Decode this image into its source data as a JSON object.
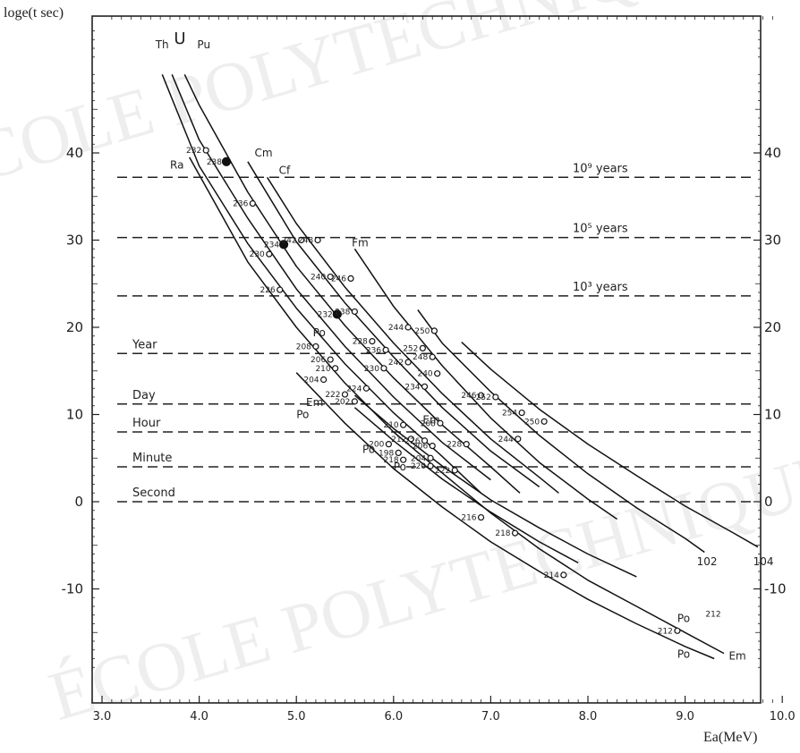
{
  "chart_data": {
    "type": "line",
    "ylabel": "loge(t sec)",
    "xlabel": "Ea(MeV)",
    "xlim": [
      3.0,
      10.0
    ],
    "ylim": [
      -20,
      55
    ],
    "xticks": [
      "3.0",
      "4.0",
      "5.0",
      "6.0",
      "7.0",
      "8.0",
      "9.0",
      "10.0"
    ],
    "yticks": [
      "40",
      "30",
      "20",
      "10",
      "0",
      "-10"
    ],
    "reference_lines": [
      {
        "label": "10⁹ years",
        "y": 37.2
      },
      {
        "label": "10⁵ years",
        "y": 30.3
      },
      {
        "label": "10³ years",
        "y": 23.6
      },
      {
        "label": "Year",
        "y": 17.0
      },
      {
        "label": "Day",
        "y": 11.2
      },
      {
        "label": "Hour",
        "y": 8.0
      },
      {
        "label": "Minute",
        "y": 4.0
      },
      {
        "label": "Second",
        "y": 0
      }
    ],
    "series": [
      {
        "name": "Th",
        "x": [
          3.62,
          4.0,
          4.5,
          5.0,
          5.5,
          6.0,
          6.5,
          6.9
        ],
        "y": [
          49.0,
          38.5,
          29.6,
          22.2,
          15.8,
          10.2,
          5.2,
          1.0
        ]
      },
      {
        "name": "Ra",
        "x": [
          3.9,
          4.5,
          5.0,
          5.5,
          6.0,
          6.5,
          7.0,
          7.5,
          8.0,
          8.5,
          9.0,
          9.4
        ],
        "y": [
          39.5,
          27.5,
          20.0,
          13.6,
          8.0,
          3.3,
          -1.3,
          -5.4,
          -9.0,
          -12.0,
          -15.0,
          -17.4
        ]
      },
      {
        "name": "U",
        "x": [
          3.72,
          4.0,
          4.5,
          5.0,
          5.5,
          6.0,
          6.5,
          7.0
        ],
        "y": [
          49.0,
          41.5,
          32.5,
          24.4,
          17.8,
          12.0,
          6.8,
          2.5
        ]
      },
      {
        "name": "Pu",
        "x": [
          3.85,
          4.0,
          4.5,
          5.0,
          5.5,
          6.0,
          6.5,
          7.0,
          7.3
        ],
        "y": [
          49.0,
          45.5,
          35.5,
          27.0,
          20.2,
          14.2,
          8.8,
          4.0,
          1.0
        ]
      },
      {
        "name": "Cm",
        "x": [
          4.5,
          5.0,
          5.5,
          6.0,
          6.5,
          7.0,
          7.5
        ],
        "y": [
          39.0,
          29.8,
          22.8,
          16.6,
          10.8,
          5.8,
          1.7
        ]
      },
      {
        "name": "Cf",
        "x": [
          4.7,
          5.0,
          5.5,
          6.0,
          6.5,
          7.0,
          7.5,
          7.7
        ],
        "y": [
          37.2,
          31.9,
          24.6,
          18.2,
          12.4,
          7.2,
          2.8,
          1.0
        ]
      },
      {
        "name": "Fm",
        "x": [
          5.6,
          6.0,
          6.5,
          7.0,
          7.5,
          8.0,
          8.3
        ],
        "y": [
          29.0,
          22.4,
          15.6,
          9.6,
          4.5,
          0.3,
          -2.0
        ]
      },
      {
        "name": "102",
        "x": [
          6.25,
          6.5,
          7.0,
          7.5,
          8.0,
          8.5,
          9.0,
          9.2
        ],
        "y": [
          22.0,
          18.2,
          12.6,
          7.6,
          3.2,
          -0.7,
          -4.2,
          -5.8
        ]
      },
      {
        "name": "104",
        "x": [
          6.7,
          7.0,
          7.5,
          8.0,
          8.5,
          9.0,
          9.5,
          9.75
        ],
        "y": [
          18.3,
          15.2,
          10.6,
          6.6,
          3.0,
          -0.5,
          -3.6,
          -5.2
        ]
      },
      {
        "name": "Po",
        "x": [
          5.0,
          5.5,
          6.0,
          6.5,
          7.0,
          7.5,
          8.0,
          8.5,
          9.0,
          9.3
        ],
        "y": [
          14.8,
          9.0,
          3.8,
          -0.6,
          -4.6,
          -8.0,
          -11.2,
          -14.0,
          -16.6,
          -18.0
        ]
      },
      {
        "name": "Em",
        "x": [
          5.6,
          6.0,
          6.5,
          7.0,
          7.5,
          8.0,
          8.5
        ],
        "y": [
          12.2,
          8.4,
          4.1,
          0.2,
          -3.0,
          -6.0,
          -8.6
        ]
      },
      {
        "name": "Po-b",
        "x": [
          5.6,
          6.0,
          6.5,
          7.0,
          7.5,
          7.9
        ],
        "y": [
          10.8,
          7.0,
          2.6,
          -1.2,
          -4.6,
          -7.0
        ]
      }
    ],
    "curve_labels": [
      {
        "text": "Th",
        "x": 3.55,
        "y": 52.0
      },
      {
        "text": "U",
        "x": 3.74,
        "y": 52.5
      },
      {
        "text": "Pu",
        "x": 3.98,
        "y": 52.0
      },
      {
        "text": "Ra",
        "x": 3.7,
        "y": 38.2
      },
      {
        "text": "Cm",
        "x": 4.57,
        "y": 39.6
      },
      {
        "text": "Cf",
        "x": 4.82,
        "y": 37.6
      },
      {
        "text": "Fm",
        "x": 5.57,
        "y": 29.3
      },
      {
        "text": "Po",
        "x": 5.17,
        "y": 19.0
      },
      {
        "text": "Em",
        "x": 5.1,
        "y": 11.0
      },
      {
        "text": "Po",
        "x": 5.0,
        "y": 9.6
      },
      {
        "text": "Em",
        "x": 6.3,
        "y": 9.0
      },
      {
        "text": "Po",
        "x": 5.68,
        "y": 5.6
      },
      {
        "text": "Po",
        "x": 6.0,
        "y": 3.6
      },
      {
        "text": "Po",
        "x": 8.92,
        "y": -13.8
      },
      {
        "text": "Po",
        "x": 8.92,
        "y": -17.9
      },
      {
        "text": "Em",
        "x": 9.45,
        "y": -18.1
      },
      {
        "text": "102",
        "x": 9.12,
        "y": -7.3
      },
      {
        "text": "104",
        "x": 9.7,
        "y": -7.3
      }
    ],
    "points": [
      {
        "label": "232",
        "x": 4.07,
        "y": 40.3,
        "filled": false
      },
      {
        "label": "238",
        "x": 4.28,
        "y": 39.0,
        "filled": true
      },
      {
        "label": "236",
        "x": 4.55,
        "y": 34.2,
        "filled": false
      },
      {
        "label": "242",
        "x": 5.05,
        "y": 30.0,
        "filled": false
      },
      {
        "label": "248",
        "x": 5.22,
        "y": 30.0,
        "filled": false
      },
      {
        "label": "234",
        "x": 4.87,
        "y": 29.5,
        "filled": true
      },
      {
        "label": "230",
        "x": 4.72,
        "y": 28.4,
        "filled": false
      },
      {
        "label": "246",
        "x": 5.56,
        "y": 25.6,
        "filled": false
      },
      {
        "label": "240",
        "x": 5.35,
        "y": 25.8,
        "filled": false
      },
      {
        "label": "226",
        "x": 4.83,
        "y": 24.3,
        "filled": false
      },
      {
        "label": "238",
        "x": 5.6,
        "y": 21.8,
        "filled": false
      },
      {
        "label": "232",
        "x": 5.42,
        "y": 21.5,
        "filled": true
      },
      {
        "label": "244",
        "x": 6.15,
        "y": 20.0,
        "filled": false
      },
      {
        "label": "250",
        "x": 6.42,
        "y": 19.6,
        "filled": false
      },
      {
        "label": "252",
        "x": 6.3,
        "y": 17.6,
        "filled": false
      },
      {
        "label": "228",
        "x": 5.78,
        "y": 18.4,
        "filled": false
      },
      {
        "label": "236",
        "x": 5.92,
        "y": 17.4,
        "filled": false
      },
      {
        "label": "208",
        "x": 5.2,
        "y": 17.8,
        "filled": false
      },
      {
        "label": "248",
        "x": 6.4,
        "y": 16.6,
        "filled": false
      },
      {
        "label": "242",
        "x": 6.15,
        "y": 16.0,
        "filled": false
      },
      {
        "label": "206",
        "x": 5.35,
        "y": 16.3,
        "filled": false
      },
      {
        "label": "210",
        "x": 5.4,
        "y": 15.3,
        "filled": false
      },
      {
        "label": "230",
        "x": 5.9,
        "y": 15.3,
        "filled": false
      },
      {
        "label": "240",
        "x": 6.45,
        "y": 14.7,
        "filled": false
      },
      {
        "label": "204",
        "x": 5.28,
        "y": 14.0,
        "filled": false
      },
      {
        "label": "224",
        "x": 5.72,
        "y": 13.0,
        "filled": false
      },
      {
        "label": "234",
        "x": 6.32,
        "y": 13.2,
        "filled": false
      },
      {
        "label": "222",
        "x": 5.5,
        "y": 12.3,
        "filled": false
      },
      {
        "label": "246",
        "x": 6.9,
        "y": 12.2,
        "filled": false
      },
      {
        "label": "252",
        "x": 7.05,
        "y": 12.0,
        "filled": false
      },
      {
        "label": "202",
        "x": 5.6,
        "y": 11.5,
        "filled": false
      },
      {
        "label": "254",
        "x": 7.32,
        "y": 10.2,
        "filled": false
      },
      {
        "label": "250",
        "x": 7.55,
        "y": 9.2,
        "filled": false
      },
      {
        "label": "208",
        "x": 6.48,
        "y": 9.0,
        "filled": false
      },
      {
        "label": "210",
        "x": 6.1,
        "y": 8.8,
        "filled": false
      },
      {
        "label": "212",
        "x": 6.18,
        "y": 7.2,
        "filled": false
      },
      {
        "label": "226",
        "x": 6.32,
        "y": 7.0,
        "filled": false
      },
      {
        "label": "206",
        "x": 6.4,
        "y": 6.4,
        "filled": false
      },
      {
        "label": "228",
        "x": 6.75,
        "y": 6.6,
        "filled": false
      },
      {
        "label": "244",
        "x": 7.28,
        "y": 7.2,
        "filled": false
      },
      {
        "label": "200",
        "x": 5.95,
        "y": 6.6,
        "filled": false
      },
      {
        "label": "198",
        "x": 6.05,
        "y": 5.6,
        "filled": false
      },
      {
        "label": "204",
        "x": 6.38,
        "y": 5.0,
        "filled": false
      },
      {
        "label": "218",
        "x": 6.1,
        "y": 4.8,
        "filled": false
      },
      {
        "label": "220",
        "x": 6.38,
        "y": 4.1,
        "filled": false
      },
      {
        "label": "222",
        "x": 6.63,
        "y": 3.6,
        "filled": false
      },
      {
        "label": "216",
        "x": 6.9,
        "y": -1.8,
        "filled": false
      },
      {
        "label": "218",
        "x": 7.25,
        "y": -3.6,
        "filled": false
      },
      {
        "label": "214",
        "x": 7.75,
        "y": -8.4,
        "filled": false
      },
      {
        "label": "212",
        "x": 8.92,
        "y": -14.8,
        "filled": false
      }
    ],
    "grid": false,
    "legend": "none"
  },
  "watermark": "ÉCOLE POLYTECHNIQUE"
}
